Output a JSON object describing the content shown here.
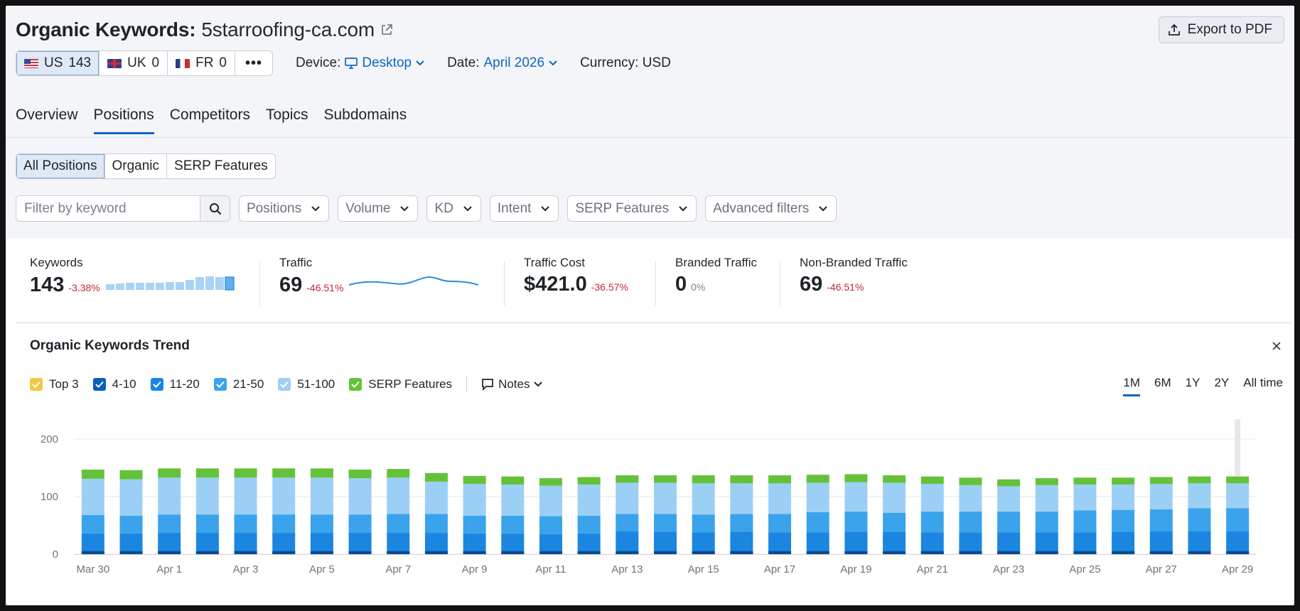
{
  "header": {
    "title_prefix": "Organic Keywords:",
    "domain": "5starroofing-ca.com",
    "export_label": "Export to PDF",
    "databases": [
      {
        "flag": "us",
        "code": "US",
        "count": "143"
      },
      {
        "flag": "uk",
        "code": "UK",
        "count": "0"
      },
      {
        "flag": "fr",
        "code": "FR",
        "count": "0"
      }
    ],
    "more": "•••",
    "device_label": "Device:",
    "device_value": "Desktop",
    "date_label": "Date:",
    "date_value": "April 2026",
    "currency": "Currency: USD"
  },
  "tabs": [
    "Overview",
    "Positions",
    "Competitors",
    "Topics",
    "Subdomains"
  ],
  "segments": [
    "All Positions",
    "Organic",
    "SERP Features"
  ],
  "filters": {
    "search_placeholder": "Filter by keyword",
    "dropdowns": [
      "Positions",
      "Volume",
      "KD",
      "Intent",
      "SERP Features",
      "Advanced filters"
    ]
  },
  "stats": [
    {
      "label": "Keywords",
      "value": "143",
      "delta": "-3.38%"
    },
    {
      "label": "Traffic",
      "value": "69",
      "delta": "-46.51%"
    },
    {
      "label": "Traffic Cost",
      "value": "$421.0",
      "delta": "-36.57%"
    },
    {
      "label": "Branded Traffic",
      "value": "0",
      "delta": "0%"
    },
    {
      "label": "Non-Branded Traffic",
      "value": "69",
      "delta": "-46.51%"
    }
  ],
  "trend": {
    "title": "Organic Keywords Trend",
    "legend": [
      {
        "label": "Top 3",
        "color": "#f2c744"
      },
      {
        "label": "4-10",
        "color": "#0b5fb7"
      },
      {
        "label": "11-20",
        "color": "#1a86e0"
      },
      {
        "label": "21-50",
        "color": "#3aa3ec"
      },
      {
        "label": "51-100",
        "color": "#9ccff6"
      },
      {
        "label": "SERP Features",
        "color": "#63c23a"
      }
    ],
    "notes_label": "Notes",
    "ranges": [
      "1M",
      "6M",
      "1Y",
      "2Y",
      "All time"
    ],
    "active_range": "1M"
  },
  "chart_data": {
    "type": "bar",
    "stacked": true,
    "categories": [
      "Mar 30",
      "Mar 31",
      "Apr 1",
      "Apr 2",
      "Apr 3",
      "Apr 4",
      "Apr 5",
      "Apr 6",
      "Apr 7",
      "Apr 8",
      "Apr 9",
      "Apr 10",
      "Apr 11",
      "Apr 12",
      "Apr 13",
      "Apr 14",
      "Apr 15",
      "Apr 16",
      "Apr 17",
      "Apr 18",
      "Apr 19",
      "Apr 20",
      "Apr 21",
      "Apr 22",
      "Apr 23",
      "Apr 24",
      "Apr 25",
      "Apr 26",
      "Apr 27",
      "Apr 28",
      "Apr 29"
    ],
    "x_tick_labels": [
      "Mar 30",
      "Apr 1",
      "Apr 3",
      "Apr 5",
      "Apr 7",
      "Apr 9",
      "Apr 11",
      "Apr 13",
      "Apr 15",
      "Apr 17",
      "Apr 19",
      "Apr 21",
      "Apr 23",
      "Apr 25",
      "Apr 27",
      "Apr 29"
    ],
    "y_ticks": [
      0,
      100,
      200
    ],
    "ylim": [
      0,
      200
    ],
    "grid": true,
    "series": [
      {
        "name": "Top 3",
        "color": "#f2c744",
        "values": [
          0,
          0,
          0,
          0,
          0,
          0,
          0,
          0,
          0,
          0,
          0,
          0,
          0,
          0,
          0,
          0,
          0,
          0,
          0,
          0,
          0,
          0,
          0,
          0,
          0,
          0,
          0,
          0,
          0,
          0,
          0
        ]
      },
      {
        "name": "4-10",
        "color": "#0b5fb7",
        "values": [
          6,
          6,
          6,
          6,
          6,
          6,
          6,
          6,
          6,
          6,
          6,
          6,
          6,
          6,
          6,
          6,
          6,
          6,
          6,
          6,
          6,
          6,
          6,
          6,
          6,
          6,
          6,
          6,
          6,
          6,
          6
        ]
      },
      {
        "name": "11-20",
        "color": "#1a86e0",
        "values": [
          30,
          30,
          31,
          31,
          31,
          31,
          31,
          31,
          31,
          31,
          30,
          30,
          29,
          30,
          34,
          33,
          32,
          33,
          32,
          32,
          33,
          33,
          32,
          32,
          32,
          32,
          32,
          33,
          34,
          34,
          34
        ]
      },
      {
        "name": "21-50",
        "color": "#3aa3ec",
        "values": [
          32,
          31,
          32,
          32,
          32,
          32,
          32,
          32,
          33,
          33,
          31,
          31,
          31,
          31,
          30,
          31,
          31,
          31,
          32,
          35,
          35,
          33,
          36,
          36,
          36,
          36,
          38,
          38,
          38,
          40,
          40
        ]
      },
      {
        "name": "51-100",
        "color": "#9ccff6",
        "values": [
          63,
          63,
          64,
          64,
          64,
          64,
          64,
          63,
          63,
          56,
          55,
          54,
          53,
          54,
          54,
          54,
          54,
          53,
          53,
          51,
          51,
          52,
          48,
          46,
          44,
          46,
          45,
          44,
          44,
          43,
          43
        ]
      },
      {
        "name": "SERP Features",
        "color": "#63c23a",
        "values": [
          16,
          16,
          16,
          16,
          16,
          16,
          16,
          15,
          15,
          15,
          14,
          14,
          13,
          13,
          13,
          13,
          14,
          14,
          14,
          14,
          14,
          13,
          13,
          13,
          12,
          12,
          12,
          12,
          12,
          12,
          12
        ]
      }
    ]
  }
}
